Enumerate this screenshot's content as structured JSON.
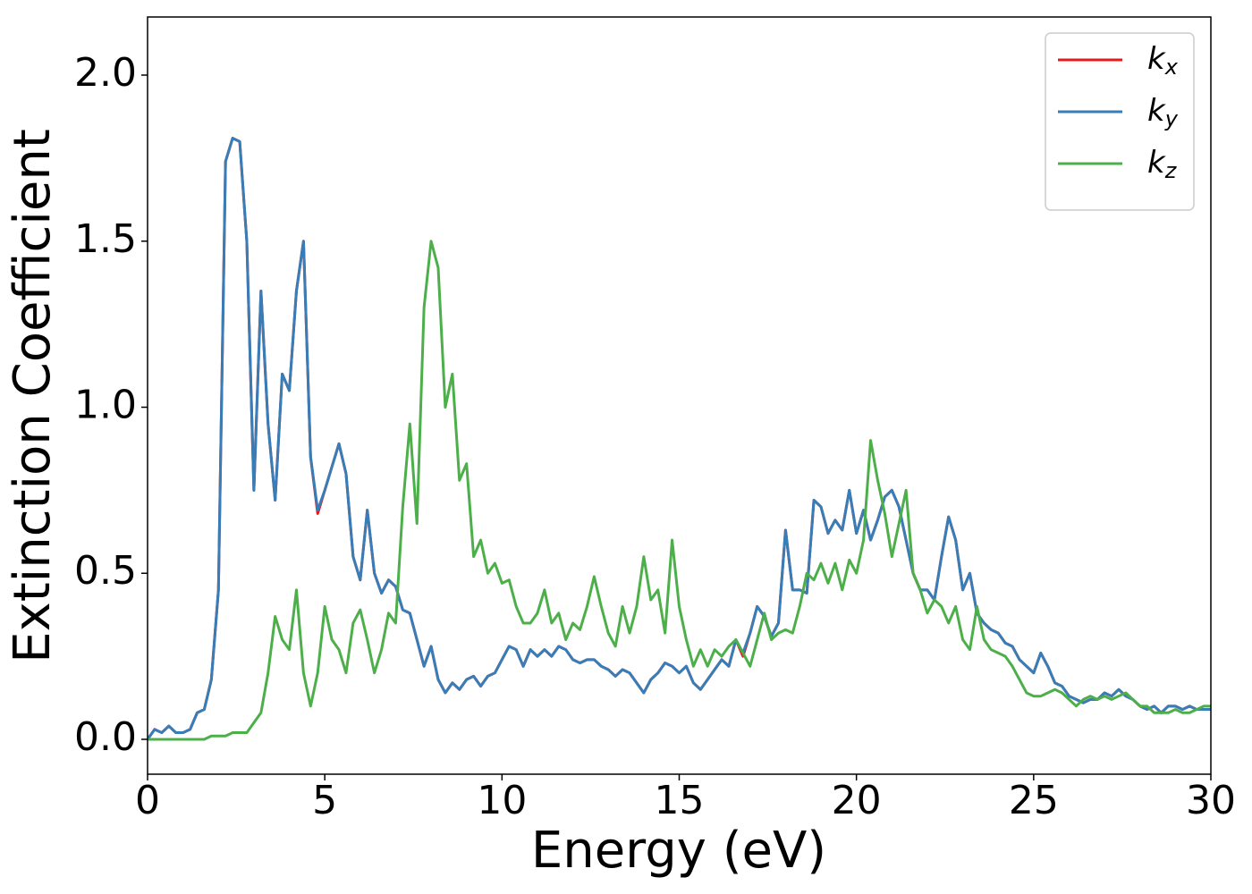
{
  "chart_data": {
    "type": "line",
    "xlabel": "Energy (eV)",
    "ylabel": "Extinction Coefficient",
    "x": [
      0,
      0.2,
      0.4,
      0.6,
      0.8,
      1,
      1.2,
      1.4,
      1.6,
      1.8,
      2,
      2.2,
      2.4,
      2.6,
      2.8,
      3,
      3.2,
      3.4,
      3.6,
      3.8,
      4,
      4.2,
      4.4,
      4.6,
      4.8,
      5,
      5.2,
      5.4,
      5.6,
      5.8,
      6,
      6.2,
      6.4,
      6.6,
      6.8,
      7,
      7.2,
      7.4,
      7.6,
      7.8,
      8,
      8.2,
      8.4,
      8.6,
      8.8,
      9,
      9.2,
      9.4,
      9.6,
      9.8,
      10,
      10.2,
      10.4,
      10.6,
      10.8,
      11,
      11.2,
      11.4,
      11.6,
      11.8,
      12,
      12.2,
      12.4,
      12.6,
      12.8,
      13,
      13.2,
      13.4,
      13.6,
      13.8,
      14,
      14.2,
      14.4,
      14.6,
      14.8,
      15,
      15.2,
      15.4,
      15.6,
      15.8,
      16,
      16.2,
      16.4,
      16.6,
      16.8,
      17,
      17.2,
      17.4,
      17.6,
      17.8,
      18,
      18.2,
      18.4,
      18.6,
      18.8,
      19,
      19.2,
      19.4,
      19.6,
      19.8,
      20,
      20.2,
      20.4,
      20.6,
      20.8,
      21,
      21.2,
      21.4,
      21.6,
      21.8,
      22,
      22.2,
      22.4,
      22.6,
      22.8,
      23,
      23.2,
      23.4,
      23.6,
      23.8,
      24,
      24.2,
      24.4,
      24.6,
      24.8,
      25,
      25.2,
      25.4,
      25.6,
      25.8,
      26,
      26.2,
      26.4,
      26.6,
      26.8,
      27,
      27.2,
      27.4,
      27.6,
      27.8,
      28,
      28.2,
      28.4,
      28.6,
      28.8,
      29,
      29.2,
      29.4,
      29.6,
      29.8,
      30
    ],
    "series": [
      {
        "name": "kx",
        "color": "#e41a1c",
        "values": [
          0,
          0.03,
          0.02,
          0.04,
          0.02,
          0.02,
          0.03,
          0.08,
          0.09,
          0.18,
          0.45,
          1.74,
          1.81,
          1.8,
          1.5,
          0.75,
          1.35,
          0.95,
          0.72,
          1.1,
          1.05,
          1.35,
          1.5,
          0.85,
          0.68,
          0.75,
          0.82,
          0.89,
          0.8,
          0.55,
          0.48,
          0.69,
          0.5,
          0.44,
          0.48,
          0.46,
          0.39,
          0.38,
          0.3,
          0.22,
          0.28,
          0.18,
          0.14,
          0.17,
          0.15,
          0.18,
          0.19,
          0.16,
          0.19,
          0.2,
          0.24,
          0.28,
          0.27,
          0.22,
          0.27,
          0.25,
          0.27,
          0.25,
          0.28,
          0.27,
          0.24,
          0.23,
          0.24,
          0.24,
          0.22,
          0.21,
          0.19,
          0.21,
          0.2,
          0.17,
          0.14,
          0.18,
          0.2,
          0.23,
          0.22,
          0.2,
          0.22,
          0.17,
          0.15,
          0.18,
          0.21,
          0.24,
          0.22,
          0.3,
          0.25,
          0.32,
          0.4,
          0.37,
          0.31,
          0.35,
          0.63,
          0.45,
          0.45,
          0.44,
          0.72,
          0.7,
          0.62,
          0.66,
          0.63,
          0.75,
          0.62,
          0.69,
          0.6,
          0.66,
          0.73,
          0.75,
          0.7,
          0.6,
          0.5,
          0.45,
          0.45,
          0.42,
          0.55,
          0.67,
          0.6,
          0.45,
          0.5,
          0.38,
          0.35,
          0.33,
          0.32,
          0.29,
          0.28,
          0.24,
          0.22,
          0.2,
          0.26,
          0.22,
          0.17,
          0.16,
          0.13,
          0.12,
          0.11,
          0.12,
          0.12,
          0.14,
          0.13,
          0.15,
          0.13,
          0.12,
          0.1,
          0.09,
          0.1,
          0.08,
          0.1,
          0.1,
          0.09,
          0.1,
          0.09,
          0.09,
          0.09
        ]
      },
      {
        "name": "ky",
        "color": "#377eb8",
        "values": [
          0,
          0.03,
          0.02,
          0.04,
          0.02,
          0.02,
          0.03,
          0.08,
          0.09,
          0.18,
          0.45,
          1.74,
          1.81,
          1.8,
          1.5,
          0.75,
          1.35,
          0.95,
          0.72,
          1.1,
          1.05,
          1.35,
          1.5,
          0.85,
          0.69,
          0.75,
          0.82,
          0.89,
          0.8,
          0.55,
          0.48,
          0.69,
          0.5,
          0.44,
          0.48,
          0.46,
          0.39,
          0.38,
          0.3,
          0.22,
          0.28,
          0.18,
          0.14,
          0.17,
          0.15,
          0.18,
          0.19,
          0.16,
          0.19,
          0.2,
          0.24,
          0.28,
          0.27,
          0.22,
          0.27,
          0.25,
          0.27,
          0.25,
          0.28,
          0.27,
          0.24,
          0.23,
          0.24,
          0.24,
          0.22,
          0.21,
          0.19,
          0.21,
          0.2,
          0.17,
          0.14,
          0.18,
          0.2,
          0.23,
          0.22,
          0.2,
          0.22,
          0.17,
          0.15,
          0.18,
          0.21,
          0.24,
          0.22,
          0.3,
          0.26,
          0.32,
          0.4,
          0.37,
          0.31,
          0.35,
          0.63,
          0.45,
          0.45,
          0.44,
          0.72,
          0.7,
          0.62,
          0.66,
          0.63,
          0.75,
          0.62,
          0.69,
          0.6,
          0.66,
          0.73,
          0.75,
          0.7,
          0.6,
          0.5,
          0.45,
          0.45,
          0.42,
          0.55,
          0.67,
          0.6,
          0.45,
          0.5,
          0.38,
          0.35,
          0.33,
          0.32,
          0.29,
          0.28,
          0.24,
          0.22,
          0.2,
          0.26,
          0.22,
          0.17,
          0.16,
          0.13,
          0.12,
          0.11,
          0.12,
          0.12,
          0.14,
          0.13,
          0.15,
          0.13,
          0.12,
          0.1,
          0.09,
          0.1,
          0.08,
          0.1,
          0.1,
          0.09,
          0.1,
          0.09,
          0.09,
          0.09
        ]
      },
      {
        "name": "kz",
        "color": "#4daf4a",
        "values": [
          0,
          0,
          0,
          0,
          0,
          0,
          0,
          0,
          0,
          0.01,
          0.01,
          0.01,
          0.02,
          0.02,
          0.02,
          0.05,
          0.08,
          0.2,
          0.37,
          0.3,
          0.27,
          0.45,
          0.2,
          0.1,
          0.2,
          0.4,
          0.3,
          0.27,
          0.2,
          0.35,
          0.39,
          0.3,
          0.2,
          0.27,
          0.38,
          0.35,
          0.7,
          0.95,
          0.65,
          1.3,
          1.5,
          1.42,
          1.0,
          1.1,
          0.78,
          0.83,
          0.55,
          0.6,
          0.5,
          0.53,
          0.47,
          0.48,
          0.4,
          0.35,
          0.35,
          0.38,
          0.45,
          0.35,
          0.38,
          0.3,
          0.35,
          0.33,
          0.4,
          0.49,
          0.4,
          0.32,
          0.28,
          0.4,
          0.32,
          0.4,
          0.55,
          0.42,
          0.45,
          0.32,
          0.6,
          0.4,
          0.3,
          0.22,
          0.27,
          0.22,
          0.27,
          0.25,
          0.28,
          0.3,
          0.26,
          0.22,
          0.3,
          0.38,
          0.3,
          0.32,
          0.33,
          0.32,
          0.4,
          0.5,
          0.48,
          0.53,
          0.47,
          0.53,
          0.45,
          0.54,
          0.5,
          0.6,
          0.9,
          0.78,
          0.68,
          0.55,
          0.65,
          0.75,
          0.5,
          0.45,
          0.38,
          0.42,
          0.4,
          0.35,
          0.4,
          0.3,
          0.27,
          0.4,
          0.3,
          0.27,
          0.26,
          0.25,
          0.22,
          0.18,
          0.14,
          0.13,
          0.13,
          0.14,
          0.15,
          0.14,
          0.12,
          0.1,
          0.12,
          0.13,
          0.12,
          0.13,
          0.12,
          0.13,
          0.14,
          0.12,
          0.1,
          0.1,
          0.08,
          0.08,
          0.08,
          0.09,
          0.08,
          0.08,
          0.09,
          0.1,
          0.1
        ]
      }
    ],
    "xlim": [
      0,
      30
    ],
    "xticks": [
      0,
      5,
      10,
      15,
      20,
      25,
      30
    ],
    "ylim": [
      -0.105,
      2.175
    ],
    "yticks": [
      {
        "value": 0,
        "label": "0.0"
      },
      0.5,
      {
        "value": 1,
        "label": "1.0"
      },
      1.5,
      {
        "value": 2,
        "label": "2.0"
      }
    ],
    "legend": "upper right",
    "grid": false
  }
}
